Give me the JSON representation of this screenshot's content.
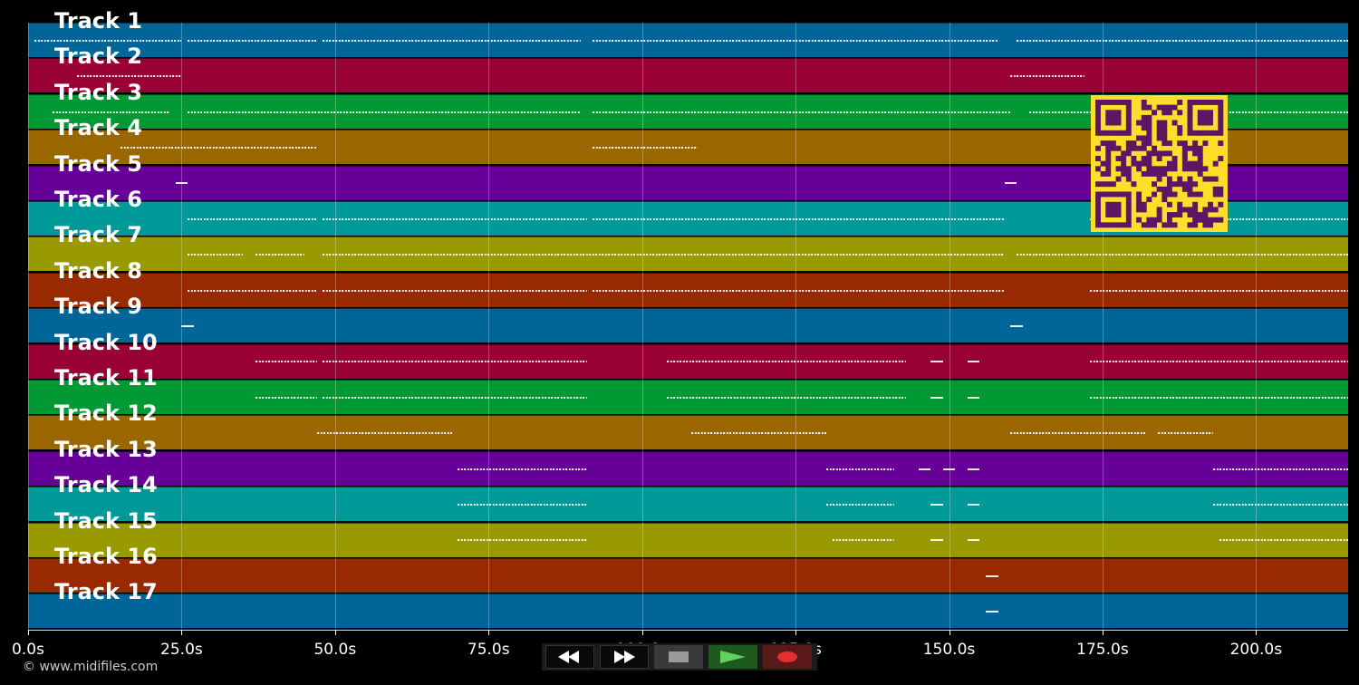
{
  "tracks": [
    {
      "label": "Track 1",
      "color": "#006699"
    },
    {
      "label": "Track 2",
      "color": "#990033"
    },
    {
      "label": "Track 3",
      "color": "#009933"
    },
    {
      "label": "Track 4",
      "color": "#996600"
    },
    {
      "label": "Track 5",
      "color": "#660099"
    },
    {
      "label": "Track 6",
      "color": "#009999"
    },
    {
      "label": "Track 7",
      "color": "#999900"
    },
    {
      "label": "Track 8",
      "color": "#992900"
    },
    {
      "label": "Track 9",
      "color": "#006699"
    },
    {
      "label": "Track 10",
      "color": "#990033"
    },
    {
      "label": "Track 11",
      "color": "#009933"
    },
    {
      "label": "Track 12",
      "color": "#996600"
    },
    {
      "label": "Track 13",
      "color": "#660099"
    },
    {
      "label": "Track 14",
      "color": "#009999"
    },
    {
      "label": "Track 15",
      "color": "#999900"
    },
    {
      "label": "Track 16",
      "color": "#992900"
    },
    {
      "label": "Track 17",
      "color": "#006699"
    }
  ],
  "time_axis": {
    "ticks": [
      "0.0s",
      "25.0s",
      "50.0s",
      "75.0s",
      "100.0s",
      "125.0s",
      "150.0s",
      "175.0s",
      "200.0s"
    ],
    "tick_values": [
      0,
      25,
      50,
      75,
      100,
      125,
      150,
      175,
      200
    ],
    "range": [
      0,
      215
    ]
  },
  "note_activity": [
    {
      "track": 1,
      "segments": [
        [
          1,
          25
        ],
        [
          26,
          47
        ],
        [
          48,
          90
        ],
        [
          92,
          158
        ],
        [
          161,
          215
        ]
      ]
    },
    {
      "track": 2,
      "segments": [
        [
          8,
          25
        ],
        [
          160,
          172
        ]
      ]
    },
    {
      "track": 3,
      "segments": [
        [
          4,
          23
        ],
        [
          26,
          90
        ],
        [
          92,
          160
        ],
        [
          163,
          215
        ]
      ]
    },
    {
      "track": 4,
      "segments": [
        [
          15,
          47
        ],
        [
          92,
          109
        ]
      ]
    },
    {
      "track": 5,
      "segments": [
        [
          24,
          26
        ],
        [
          159,
          161
        ]
      ]
    },
    {
      "track": 6,
      "segments": [
        [
          26,
          47
        ],
        [
          48,
          91
        ],
        [
          92,
          159
        ],
        [
          173,
          215
        ]
      ]
    },
    {
      "track": 7,
      "segments": [
        [
          26,
          35
        ],
        [
          37,
          45
        ],
        [
          48,
          159
        ],
        [
          161,
          215
        ]
      ]
    },
    {
      "track": 8,
      "segments": [
        [
          26,
          47
        ],
        [
          48,
          91
        ],
        [
          92,
          159
        ],
        [
          173,
          215
        ]
      ]
    },
    {
      "track": 9,
      "segments": [
        [
          25,
          27
        ],
        [
          160,
          162
        ]
      ]
    },
    {
      "track": 10,
      "segments": [
        [
          37,
          47
        ],
        [
          48,
          91
        ],
        [
          104,
          143
        ],
        [
          147,
          149
        ],
        [
          153,
          155
        ],
        [
          173,
          215
        ]
      ]
    },
    {
      "track": 11,
      "segments": [
        [
          37,
          47
        ],
        [
          48,
          91
        ],
        [
          104,
          143
        ],
        [
          147,
          149
        ],
        [
          153,
          155
        ],
        [
          173,
          215
        ]
      ]
    },
    {
      "track": 12,
      "segments": [
        [
          47,
          69
        ],
        [
          108,
          130
        ],
        [
          160,
          182
        ],
        [
          184,
          193
        ]
      ]
    },
    {
      "track": 13,
      "segments": [
        [
          70,
          91
        ],
        [
          130,
          141
        ],
        [
          145,
          147
        ],
        [
          149,
          151
        ],
        [
          153,
          155
        ],
        [
          193,
          215
        ]
      ]
    },
    {
      "track": 14,
      "segments": [
        [
          70,
          91
        ],
        [
          130,
          141
        ],
        [
          147,
          149
        ],
        [
          153,
          155
        ],
        [
          193,
          215
        ]
      ]
    },
    {
      "track": 15,
      "segments": [
        [
          70,
          91
        ],
        [
          131,
          141
        ],
        [
          147,
          149
        ],
        [
          153,
          155
        ],
        [
          194,
          215
        ]
      ]
    },
    {
      "track": 16,
      "segments": [
        [
          156,
          158
        ]
      ]
    },
    {
      "track": 17,
      "segments": [
        [
          156,
          158
        ]
      ]
    }
  ],
  "copyright": "© www.midifiles.com",
  "transport": {
    "rewind_icon": "rewind-icon",
    "forward_icon": "fast-forward-icon",
    "stop_icon": "stop-icon",
    "play_icon": "play-icon",
    "record_icon": "record-icon"
  },
  "qr_code": {
    "color_fg": "#5b1763",
    "color_bg": "#ffde2b"
  }
}
